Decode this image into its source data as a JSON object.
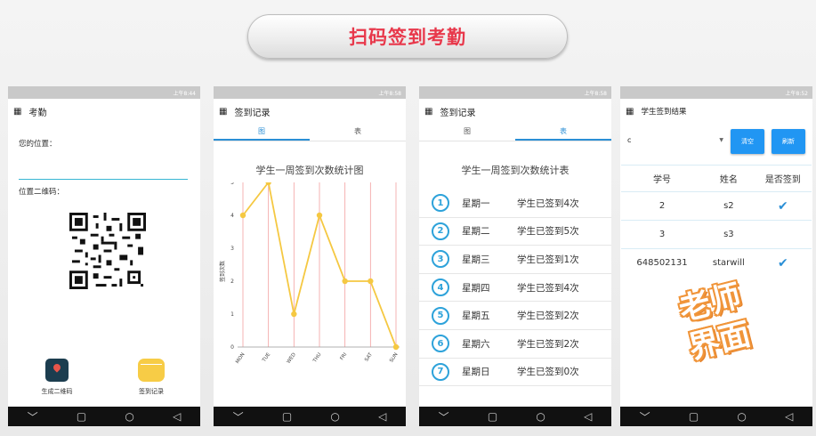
{
  "banner": {
    "title": "扫码签到考勤"
  },
  "status": {
    "time1": "上午8:44",
    "time2": "上午8:58",
    "time3": "上午8:58",
    "time4": "上午8:52"
  },
  "phone1": {
    "title": "考勤",
    "location_label": "您的位置：",
    "qr_label": "位置二维码：",
    "btn_generate": "生成二维码",
    "btn_records": "签到记录"
  },
  "phone2": {
    "title": "签到记录",
    "tab_chart": "图",
    "tab_table": "表",
    "chart_title": "学生一周签到次数统计图"
  },
  "chart_data": {
    "type": "line",
    "title": "学生一周签到次数统计图",
    "ylabel": "签到次数",
    "xlabel": "",
    "categories": [
      "MON",
      "TUE",
      "WED",
      "THU",
      "FRI",
      "SAT",
      "SUN"
    ],
    "values": [
      4,
      5,
      1,
      4,
      2,
      2,
      0
    ],
    "ylim": [
      0,
      5
    ],
    "yticks": [
      "0",
      "1",
      "2",
      "3",
      "4",
      "5"
    ],
    "color": "#f5c842",
    "grid_color": "#f2a0a0"
  },
  "phone3": {
    "title": "签到记录",
    "tab_chart": "图",
    "tab_table": "表",
    "table_title": "学生一周签到次数统计表",
    "rows": [
      {
        "num": "1",
        "day": "星期一",
        "text": "学生已签到4次"
      },
      {
        "num": "2",
        "day": "星期二",
        "text": "学生已签到5次"
      },
      {
        "num": "3",
        "day": "星期三",
        "text": "学生已签到1次"
      },
      {
        "num": "4",
        "day": "星期四",
        "text": "学生已签到4次"
      },
      {
        "num": "5",
        "day": "星期五",
        "text": "学生已签到2次"
      },
      {
        "num": "6",
        "day": "星期六",
        "text": "学生已签到2次"
      },
      {
        "num": "7",
        "day": "星期日",
        "text": "学生已签到0次"
      }
    ]
  },
  "phone4": {
    "title": "学生签到结果",
    "dropdown_value": "c",
    "btn_clear": "清空",
    "btn_refresh": "刷新",
    "headers": [
      "学号",
      "姓名",
      "是否签到"
    ],
    "rows": [
      {
        "id": "2",
        "name": "s2",
        "checked": true
      },
      {
        "id": "3",
        "name": "s3",
        "checked": false
      },
      {
        "id": "648502131",
        "name": "starwill",
        "checked": true
      }
    ]
  },
  "stamp": {
    "line1": "老师",
    "line2": "界面"
  },
  "colors": {
    "accent": "#2b8fd6",
    "banner_text": "#e8384b",
    "stamp": "#f0953a"
  }
}
